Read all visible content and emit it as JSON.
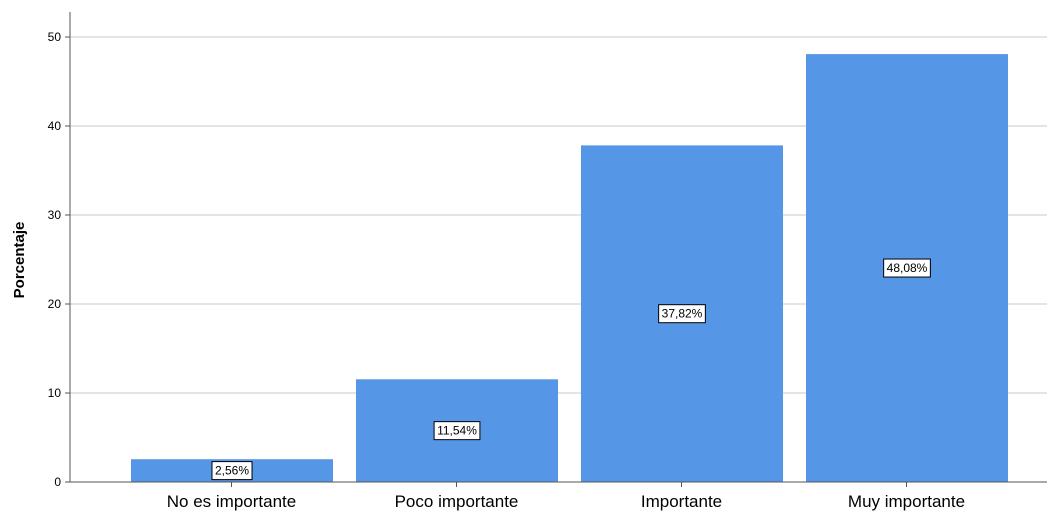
{
  "chart_data": {
    "type": "bar",
    "title": "",
    "xlabel": "",
    "ylabel": "Porcentaje",
    "ylim": [
      0,
      50
    ],
    "yticks": [
      0,
      10,
      20,
      30,
      40,
      50
    ],
    "grid": true,
    "categories": [
      "No es importante",
      "Poco importante",
      "Importante",
      "Muy importante"
    ],
    "values": [
      2.56,
      11.54,
      37.82,
      48.08
    ],
    "data_labels": [
      "2,56%",
      "11,54%",
      "37,82%",
      "48,08%"
    ],
    "colors": {
      "bar": "#5596e6",
      "grid": "#c8c8c8",
      "axis": "#555555"
    }
  }
}
